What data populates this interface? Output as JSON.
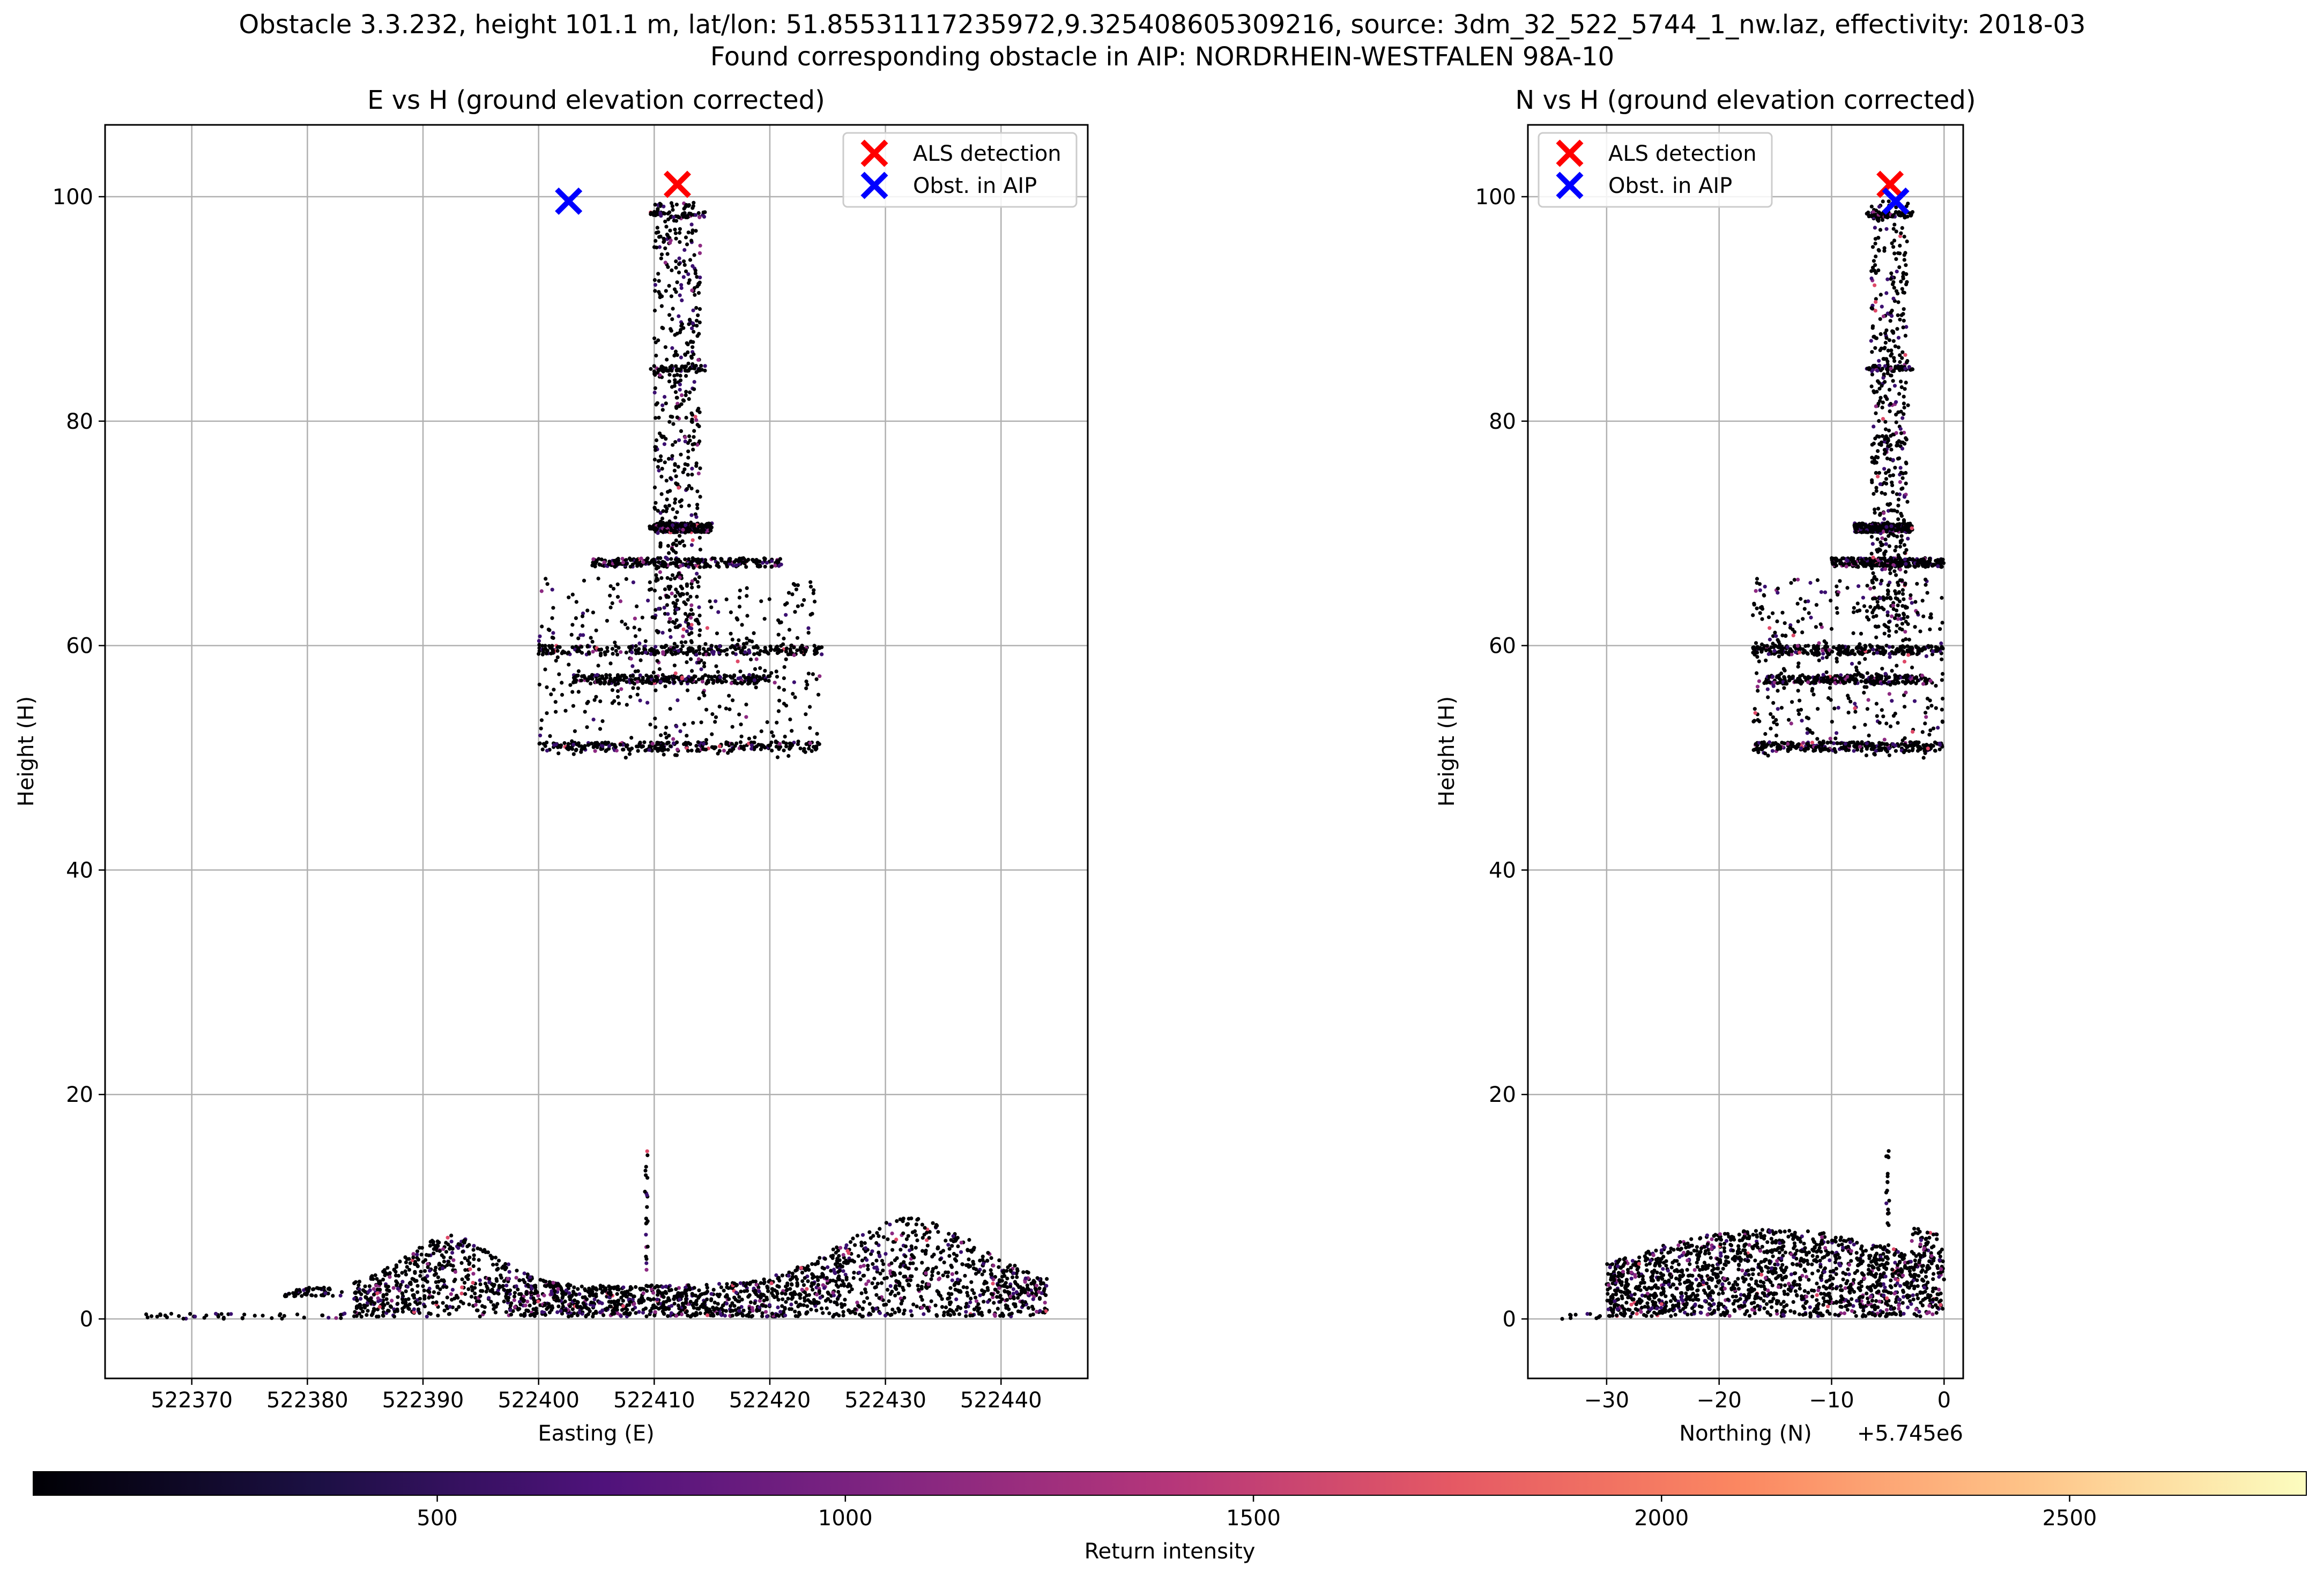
{
  "figure": {
    "title_line1": "Obstacle 3.3.232, height 101.1 m, lat/lon: 51.85531117235972,9.325408605309216, source: 3dm_32_522_5744_1_nw.laz, effectivity: 2018-03",
    "title_line2": "Found corresponding obstacle in AIP: NORDRHEIN-WESTFALEN 98A-10"
  },
  "chart_data": [
    {
      "id": "left",
      "type": "scatter",
      "title": "E vs H (ground elevation corrected)",
      "xlabel": "Easting (E)",
      "ylabel": "Height (H)",
      "x_offset_label": "",
      "xlim": [
        522362.5,
        522447.5
      ],
      "ylim": [
        -5.3,
        106.4
      ],
      "xticks": [
        522370,
        522380,
        522390,
        522400,
        522410,
        522420,
        522430,
        522440
      ],
      "xtick_labels": [
        "522370",
        "522380",
        "522390",
        "522400",
        "522410",
        "522420",
        "522430",
        "522440"
      ],
      "yticks": [
        0,
        20,
        40,
        60,
        80,
        100
      ],
      "ytick_labels": [
        "0",
        "20",
        "40",
        "60",
        "80",
        "100"
      ],
      "grid": true,
      "legend_position": "top-right",
      "markers": [
        {
          "name": "ALS detection",
          "x": 522412.0,
          "y": 101.1,
          "color": "#ff0000"
        },
        {
          "name": "Obst. in AIP",
          "x": 522402.6,
          "y": 99.6,
          "color": "#0000ff"
        }
      ],
      "point_clouds": [
        {
          "part": "ground vegetation",
          "x_range": [
            522384,
            522444
          ],
          "y_range": [
            0.2,
            9
          ]
        },
        {
          "part": "ground sparse points",
          "x_range": [
            522366,
            522384
          ],
          "y_range": [
            0,
            1
          ]
        },
        {
          "part": "low platform",
          "x_range": [
            522378,
            522383
          ],
          "y_range": [
            2,
            2.8
          ]
        },
        {
          "part": "ground mast spike",
          "x": 522409.3,
          "y_range": [
            4,
            15.3
          ]
        },
        {
          "part": "tower shaft",
          "x_range": [
            522410,
            522414
          ],
          "y_range": [
            61,
            99.6
          ]
        },
        {
          "part": "tower platform",
          "x_range": [
            522400,
            522424.5
          ],
          "y_range": [
            50,
            68
          ]
        }
      ]
    },
    {
      "id": "right",
      "type": "scatter",
      "title": "N vs H (ground elevation corrected)",
      "xlabel": "Northing (N)",
      "ylabel": "Height (H)",
      "x_offset_label": "+5.745e6",
      "xlim": [
        -37.0,
        1.7
      ],
      "ylim": [
        -5.3,
        106.4
      ],
      "xticks": [
        -30,
        -20,
        -10,
        0
      ],
      "xtick_labels": [
        "−30",
        "−20",
        "−10",
        "0"
      ],
      "yticks": [
        0,
        20,
        40,
        60,
        80,
        100
      ],
      "ytick_labels": [
        "0",
        "20",
        "40",
        "60",
        "80",
        "100"
      ],
      "grid": true,
      "legend_position": "top-left",
      "markers": [
        {
          "name": "ALS detection",
          "x": -4.8,
          "y": 101.1,
          "color": "#ff0000"
        },
        {
          "name": "Obst. in AIP",
          "x": -4.3,
          "y": 99.6,
          "color": "#0000ff"
        }
      ],
      "point_clouds": [
        {
          "part": "ground vegetation",
          "x_range": [
            -30,
            0
          ],
          "y_range": [
            0.2,
            9
          ]
        },
        {
          "part": "ground sparse points",
          "x_range": [
            -35,
            -30
          ],
          "y_range": [
            0,
            1
          ]
        },
        {
          "part": "ground mast spike",
          "x": -5.0,
          "y_range": [
            4,
            15.3
          ]
        },
        {
          "part": "tower shaft",
          "x_range": [
            -6.5,
            -3.2
          ],
          "y_range": [
            61,
            99.6
          ]
        },
        {
          "part": "tower platform",
          "x_range": [
            -17,
            0
          ],
          "y_range": [
            50,
            68
          ]
        }
      ]
    }
  ],
  "colorbar": {
    "label": "Return intensity",
    "colormap": "magma",
    "range": [
      5,
      2790
    ],
    "ticks": [
      500,
      1000,
      1500,
      2000,
      2500
    ],
    "tick_labels": [
      "500",
      "1000",
      "1500",
      "2000",
      "2500"
    ]
  },
  "colors": {
    "point_dark": "#000004",
    "point_purple": "#3b0f70",
    "point_magenta": "#8c2981",
    "point_pink": "#de4968",
    "grid": "#b0b0b0"
  }
}
